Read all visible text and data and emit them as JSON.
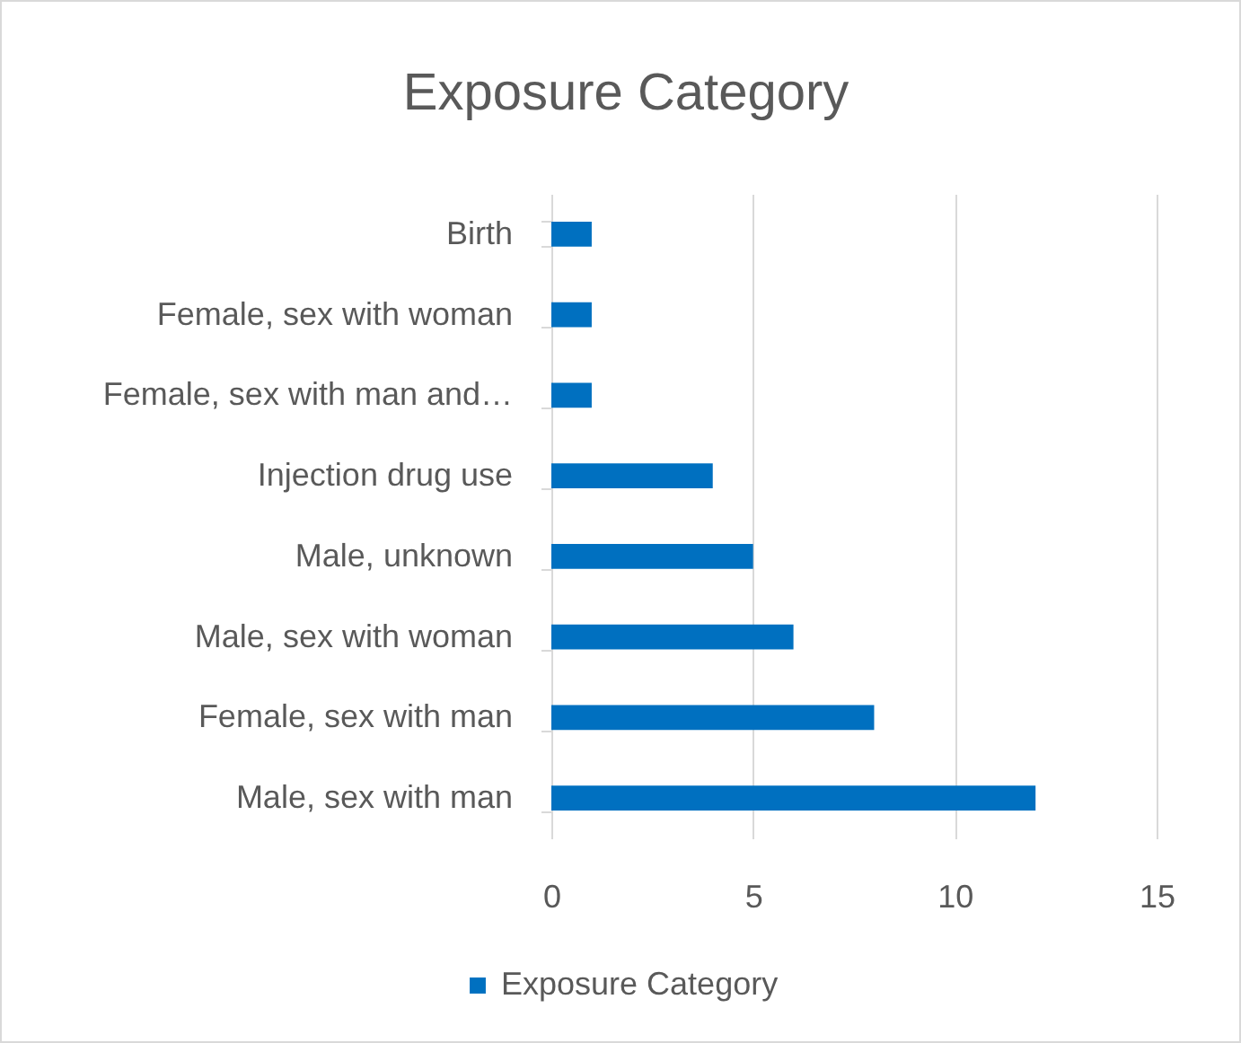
{
  "chart_data": {
    "type": "bar",
    "title": "Exposure Category",
    "orientation": "horizontal",
    "categories": [
      "Birth",
      "Female, sex with woman",
      "Female, sex with man and…",
      "Injection drug use",
      "Male, unknown",
      "Male, sex with woman",
      "Female, sex with man",
      "Male, sex with man"
    ],
    "series": [
      {
        "name": "Exposure Category",
        "color": "#0070c0",
        "values": [
          1,
          1,
          1,
          4,
          5,
          6,
          8,
          12
        ]
      }
    ],
    "xlim": [
      0,
      15
    ],
    "xticks": [
      0,
      5,
      10,
      15
    ],
    "grid": "x",
    "legend": "bottom"
  }
}
